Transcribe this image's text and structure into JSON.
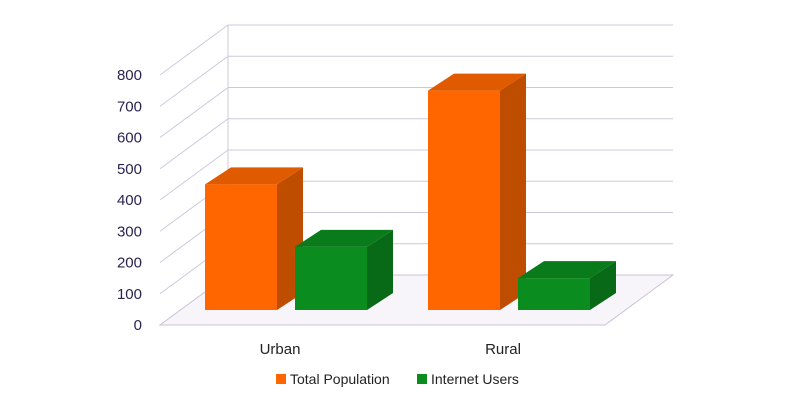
{
  "chart_data": {
    "type": "bar",
    "categories": [
      "Urban",
      "Rural"
    ],
    "series": [
      {
        "name": "Total Population",
        "values": [
          450,
          750
        ],
        "color": "#ff6600"
      },
      {
        "name": "Internet Users",
        "values": [
          250,
          150
        ],
        "color": "#0a8c1e"
      }
    ],
    "y_ticks": [
      "0",
      "100",
      "200",
      "300",
      "400",
      "500",
      "600",
      "700",
      "800"
    ],
    "ylim": [
      0,
      800
    ],
    "grid": true,
    "legend_position": "bottom-center",
    "style": "3d-column"
  }
}
